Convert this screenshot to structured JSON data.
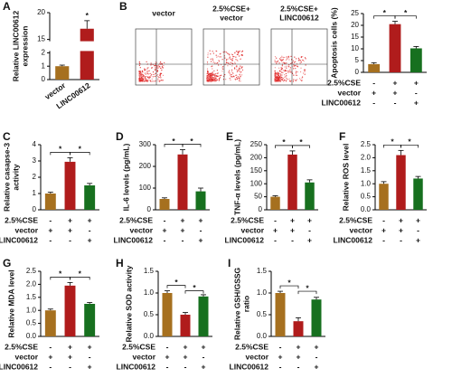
{
  "conditions": [
    {
      "label": "2.5%CSE",
      "signs": [
        "-",
        "+",
        "+"
      ]
    },
    {
      "label": "vector",
      "signs": [
        "+",
        "+",
        "-"
      ]
    },
    {
      "label": "LINC00612",
      "signs": [
        "-",
        "-",
        "+"
      ]
    }
  ],
  "flow_panels": [
    {
      "label": [
        "vector"
      ]
    },
    {
      "label": [
        "2.5%CSE+",
        "vector"
      ]
    },
    {
      "label": [
        "2.5%CSE+",
        "LINC00612"
      ]
    }
  ],
  "chart_data": [
    {
      "type": "bar",
      "panel": "A",
      "ylabel": [
        "Relative LINC00612",
        "expression"
      ],
      "categories": [
        "vector",
        "LINC00612"
      ],
      "values": [
        1.0,
        17.0
      ],
      "errors": [
        0.08,
        1.5
      ],
      "colors": [
        "#a6701f",
        "#b01c1c"
      ],
      "ylim": [
        0,
        20
      ],
      "ybreak": [
        2,
        15
      ],
      "yticks": [
        0,
        1,
        2,
        15,
        20
      ],
      "annotations": [
        "*"
      ]
    },
    {
      "type": "bar",
      "panel": "B",
      "ylabel": [
        "Apoptosis cells (%)"
      ],
      "values": [
        3.5,
        20.5,
        10.2
      ],
      "errors": [
        0.6,
        1.2,
        0.8
      ],
      "colors": [
        "#a6701f",
        "#b01c1c",
        "#17701f"
      ],
      "ylim": [
        0,
        25
      ],
      "yticks": [
        0,
        5,
        10,
        15,
        20,
        25
      ],
      "annotations": [
        "*",
        "*"
      ]
    },
    {
      "type": "bar",
      "panel": "C",
      "ylabel": [
        "Relative casapse-3",
        "activity"
      ],
      "values": [
        1.0,
        2.95,
        1.5
      ],
      "errors": [
        0.08,
        0.25,
        0.12
      ],
      "colors": [
        "#a6701f",
        "#b01c1c",
        "#17701f"
      ],
      "ylim": [
        0,
        4
      ],
      "yticks": [
        0,
        1,
        2,
        3,
        4
      ],
      "annotations": [
        "*",
        "*"
      ]
    },
    {
      "type": "bar",
      "panel": "D",
      "ylabel": [
        "IL-6 levels (pg/mL)"
      ],
      "values": [
        50,
        255,
        85
      ],
      "errors": [
        5,
        22,
        15
      ],
      "colors": [
        "#a6701f",
        "#b01c1c",
        "#17701f"
      ],
      "ylim": [
        0,
        300
      ],
      "yticks": [
        0,
        100,
        200,
        300
      ],
      "annotations": [
        "*",
        "*"
      ]
    },
    {
      "type": "bar",
      "panel": "E",
      "ylabel": [
        "TNF-α levels (pg/mL)"
      ],
      "values": [
        50,
        212,
        105
      ],
      "errors": [
        4,
        14,
        10
      ],
      "colors": [
        "#a6701f",
        "#b01c1c",
        "#17701f"
      ],
      "ylim": [
        0,
        250
      ],
      "yticks": [
        0,
        50,
        100,
        150,
        200,
        250
      ],
      "annotations": [
        "*",
        "*"
      ]
    },
    {
      "type": "bar",
      "panel": "F",
      "ylabel": [
        "Relative ROS level"
      ],
      "values": [
        1.0,
        2.1,
        1.2
      ],
      "errors": [
        0.08,
        0.18,
        0.08
      ],
      "colors": [
        "#a6701f",
        "#b01c1c",
        "#17701f"
      ],
      "ylim": [
        0,
        2.5
      ],
      "yticks": [
        {
          "value": 0,
          "label": "0.0"
        },
        {
          "value": 0.5,
          "label": "0.5"
        },
        {
          "value": 1,
          "label": "1.0"
        },
        {
          "value": 1.5,
          "label": "1.5"
        },
        {
          "value": 2,
          "label": "2.0"
        },
        {
          "value": 2.5,
          "label": "2.5"
        }
      ],
      "annotations": [
        "*",
        "*"
      ]
    },
    {
      "type": "bar",
      "panel": "G",
      "ylabel": [
        "Relative MDA level"
      ],
      "values": [
        1.0,
        1.95,
        1.25
      ],
      "errors": [
        0.05,
        0.12,
        0.05
      ],
      "colors": [
        "#a6701f",
        "#b01c1c",
        "#17701f"
      ],
      "ylim": [
        0,
        2.5
      ],
      "yticks": [
        {
          "value": 0,
          "label": "0.0"
        },
        {
          "value": 0.5,
          "label": "0.5"
        },
        {
          "value": 1,
          "label": "1.0"
        },
        {
          "value": 1.5,
          "label": "1.5"
        },
        {
          "value": 2,
          "label": "2.0"
        },
        {
          "value": 2.5,
          "label": "2.5"
        }
      ],
      "annotations": [
        "*",
        "*"
      ]
    },
    {
      "type": "bar",
      "panel": "H",
      "ylabel": [
        "Relative SOD activity"
      ],
      "values": [
        1.0,
        0.5,
        0.92
      ],
      "errors": [
        0.05,
        0.05,
        0.04
      ],
      "colors": [
        "#a6701f",
        "#b01c1c",
        "#17701f"
      ],
      "ylim": [
        0,
        1.5
      ],
      "yticks": [
        {
          "value": 0,
          "label": "0.0"
        },
        {
          "value": 0.5,
          "label": "0.5"
        },
        {
          "value": 1,
          "label": "1.0"
        },
        {
          "value": 1.5,
          "label": "1.5"
        }
      ],
      "annotations": [
        "*",
        "*"
      ]
    },
    {
      "type": "bar",
      "panel": "I",
      "ylabel": [
        "Relative GSH/GSSG",
        "ratio"
      ],
      "values": [
        1.0,
        0.35,
        0.85
      ],
      "errors": [
        0.04,
        0.08,
        0.05
      ],
      "colors": [
        "#a6701f",
        "#b01c1c",
        "#17701f"
      ],
      "ylim": [
        0,
        1.5
      ],
      "yticks": [
        {
          "value": 0,
          "label": "0.0"
        },
        {
          "value": 0.5,
          "label": "0.5"
        },
        {
          "value": 1,
          "label": "1.0"
        },
        {
          "value": 1.5,
          "label": "1.5"
        }
      ],
      "annotations": [
        "*",
        "*"
      ]
    }
  ]
}
